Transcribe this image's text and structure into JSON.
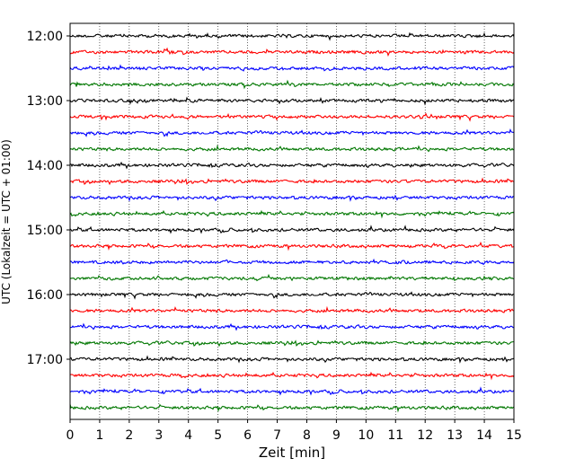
{
  "chart_data": {
    "type": "line",
    "subtype": "helicorder",
    "xlabel": "Zeit  [min]",
    "ylabel": "UTC (Lokalzeit = UTC + 01:00)",
    "xlim": [
      0,
      15
    ],
    "x_ticks": [
      "0",
      "1",
      "2",
      "3",
      "4",
      "5",
      "6",
      "7",
      "8",
      "9",
      "10",
      "11",
      "12",
      "13",
      "14",
      "15"
    ],
    "y_tick_labels": [
      "12:00",
      "13:00",
      "14:00",
      "15:00",
      "16:00",
      "17:00"
    ],
    "grid": "vertical dotted lines at each minute",
    "trace_interval_minutes": 15,
    "trace_colors_cycle": [
      "#000000",
      "#ff0000",
      "#0000ff",
      "#007700"
    ],
    "traces": [
      {
        "start": "12:00"
      },
      {
        "start": "12:15"
      },
      {
        "start": "12:30"
      },
      {
        "start": "12:45"
      },
      {
        "start": "13:00"
      },
      {
        "start": "13:15"
      },
      {
        "start": "13:30"
      },
      {
        "start": "13:45"
      },
      {
        "start": "14:00"
      },
      {
        "start": "14:15"
      },
      {
        "start": "14:30"
      },
      {
        "start": "14:45"
      },
      {
        "start": "15:00"
      },
      {
        "start": "15:15"
      },
      {
        "start": "15:30"
      },
      {
        "start": "15:45"
      },
      {
        "start": "16:00"
      },
      {
        "start": "16:15"
      },
      {
        "start": "16:30"
      },
      {
        "start": "16:45"
      },
      {
        "start": "17:00"
      },
      {
        "start": "17:15"
      },
      {
        "start": "17:30"
      },
      {
        "start": "17:45"
      }
    ]
  }
}
